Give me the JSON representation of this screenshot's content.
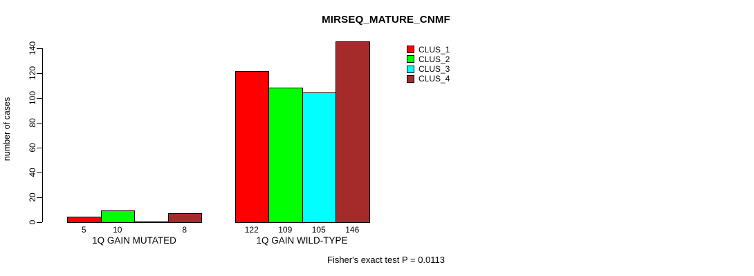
{
  "chart_data": {
    "type": "bar",
    "title": "MIRSEQ_MATURE_CNMF",
    "ylabel": "number of cases",
    "xlabel": "",
    "ylim": [
      0,
      140
    ],
    "yticks": [
      0,
      20,
      40,
      60,
      80,
      100,
      120,
      140
    ],
    "grid": false,
    "legend_position": "top-right-inside",
    "categories": [
      "1Q GAIN MUTATED",
      "1Q GAIN WILD-TYPE"
    ],
    "series": [
      {
        "name": "CLUS_1",
        "color": "#ff0000",
        "values": [
          5,
          122
        ]
      },
      {
        "name": "CLUS_2",
        "color": "#00ff00",
        "values": [
          10,
          109
        ]
      },
      {
        "name": "CLUS_3",
        "color": "#00ffff",
        "values": [
          0,
          105
        ]
      },
      {
        "name": "CLUS_4",
        "color": "#a52a2a",
        "values": [
          8,
          146
        ]
      }
    ],
    "bar_value_labels": [
      [
        "5",
        "10",
        "",
        "8"
      ],
      [
        "122",
        "109",
        "105",
        "146"
      ]
    ],
    "annotation": "Fisher's exact test P = 0.0113"
  }
}
